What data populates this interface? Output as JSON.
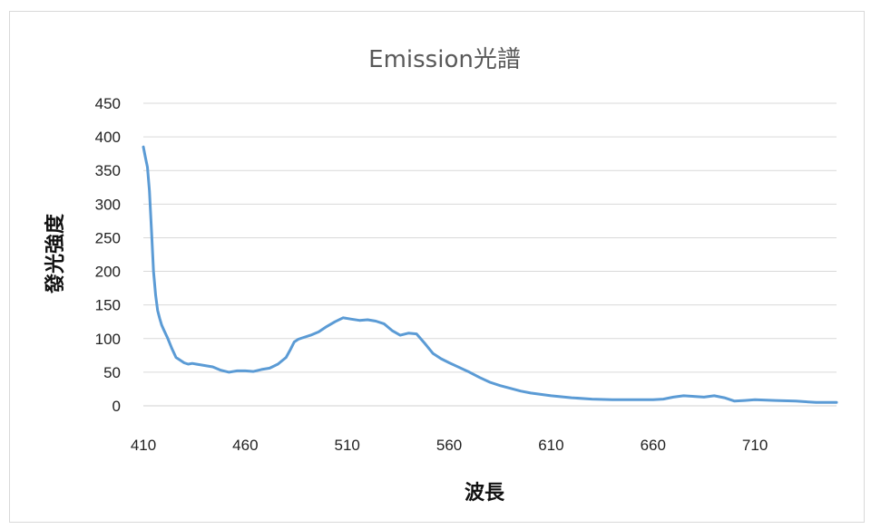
{
  "chart_data": {
    "type": "line",
    "title": "Emission光譜",
    "xlabel": "波長",
    "ylabel": "發光強度",
    "xlim": [
      410,
      750
    ],
    "ylim": [
      0,
      450
    ],
    "x_ticks": [
      410,
      460,
      510,
      560,
      610,
      660,
      710
    ],
    "y_ticks": [
      0,
      50,
      100,
      150,
      200,
      250,
      300,
      350,
      400,
      450
    ],
    "grid": true,
    "legend": "none",
    "series_color": "#5b9bd5",
    "series": [
      {
        "x": [
          410,
          411,
          412,
          413,
          414,
          415,
          416,
          417,
          418,
          419,
          420,
          422,
          424,
          426,
          428,
          430,
          432,
          434,
          436,
          440,
          444,
          448,
          452,
          456,
          460,
          464,
          468,
          472,
          476,
          480,
          482,
          484,
          486,
          488,
          492,
          496,
          500,
          504,
          508,
          512,
          516,
          520,
          524,
          528,
          532,
          536,
          540,
          544,
          548,
          552,
          556,
          560,
          565,
          570,
          575,
          580,
          585,
          590,
          595,
          600,
          610,
          620,
          630,
          640,
          650,
          660,
          665,
          670,
          675,
          680,
          685,
          690,
          695,
          700,
          705,
          710,
          720,
          730,
          740,
          750
        ],
        "y": [
          385,
          370,
          355,
          320,
          260,
          200,
          165,
          142,
          130,
          120,
          113,
          100,
          85,
          72,
          68,
          64,
          62,
          63,
          62,
          60,
          58,
          53,
          50,
          52,
          52,
          51,
          54,
          56,
          62,
          72,
          83,
          95,
          99,
          101,
          105,
          110,
          118,
          125,
          131,
          129,
          127,
          128,
          126,
          122,
          112,
          105,
          108,
          107,
          93,
          78,
          70,
          64,
          57,
          50,
          42,
          35,
          30,
          26,
          22,
          19,
          15,
          12,
          10,
          9,
          9,
          9,
          10,
          13,
          15,
          14,
          13,
          15,
          12,
          7,
          8,
          9,
          8,
          7,
          5,
          5
        ]
      }
    ]
  }
}
